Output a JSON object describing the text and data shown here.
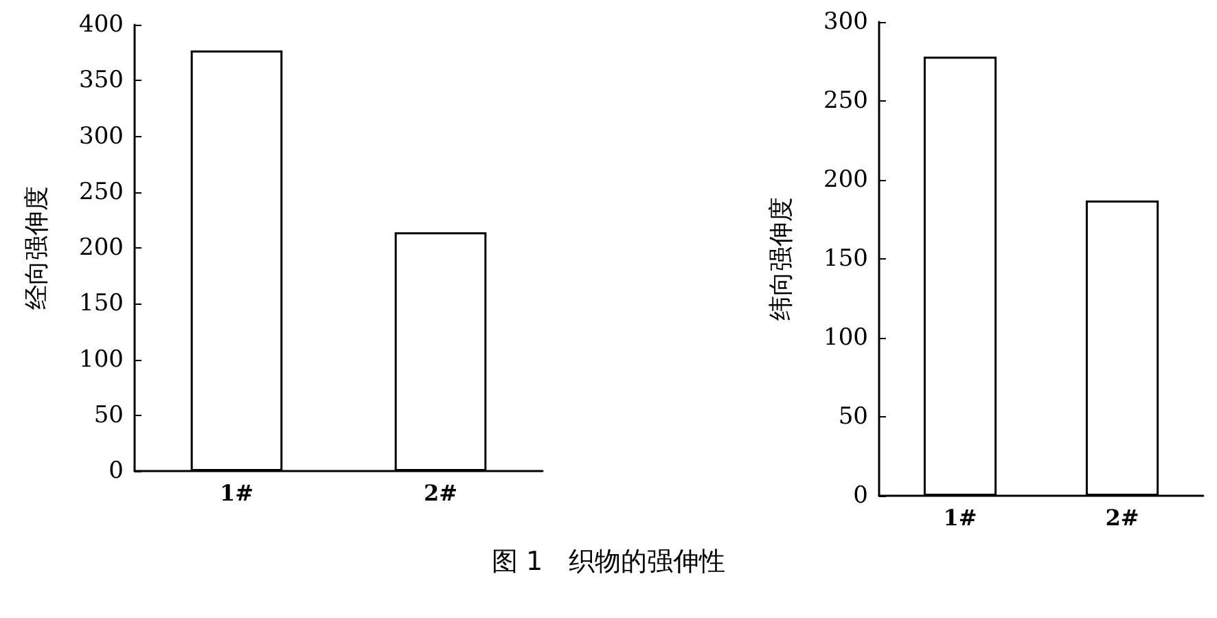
{
  "chart_data": [
    {
      "type": "bar",
      "ylabel": "经向强伸度",
      "categories": [
        "1#",
        "2#"
      ],
      "series": [
        {
          "color": "#ffffff",
          "values": [
            377,
            214
          ]
        }
      ],
      "ylim": [
        0,
        400
      ],
      "yticks": [
        0,
        50,
        100,
        150,
        200,
        250,
        300,
        350,
        400
      ],
      "grid": false,
      "annotations": [
        "图 1　织物的强伸性"
      ]
    },
    {
      "type": "bar",
      "ylabel": "纬向强伸度",
      "categories": [
        "1#",
        "2#"
      ],
      "series": [
        {
          "color": "#ffffff",
          "values": [
            278,
            187
          ]
        }
      ],
      "ylim": [
        0,
        300
      ],
      "yticks": [
        0,
        50,
        100,
        150,
        200,
        250,
        300
      ],
      "grid": false
    }
  ]
}
